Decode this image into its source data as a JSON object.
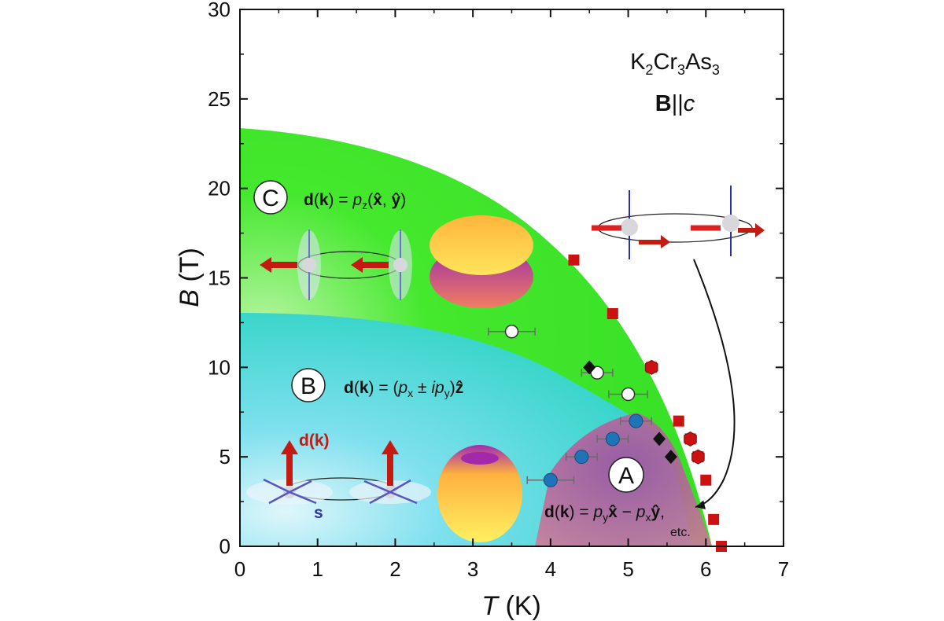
{
  "chart_data": {
    "type": "scatter",
    "title": "",
    "xlabel": {
      "var": "T",
      "unit": " (K)"
    },
    "ylabel": {
      "var": "B",
      "unit": " (T)"
    },
    "xlim": [
      0,
      7
    ],
    "ylim": [
      0,
      30
    ],
    "x_ticks": [
      "0",
      "1",
      "2",
      "3",
      "4",
      "5",
      "6",
      "7"
    ],
    "y_ticks": [
      "0",
      "5",
      "10",
      "15",
      "20",
      "25",
      "30"
    ],
    "grid": false,
    "material": {
      "compound": "K2Cr3As3",
      "field": "B||c"
    },
    "phases": [
      {
        "id": "C",
        "formula": "d(k) = pz(x̂, ŷ)",
        "color": "#3fe82c"
      },
      {
        "id": "B",
        "formula": "d(k) = (px ± ipy)ẑ",
        "color": "#31d6d2"
      },
      {
        "id": "A",
        "formula": "d(k) = pyx̂ − pxŷ,",
        "note": "etc.",
        "color": "#c86a90"
      }
    ],
    "vector_labels": {
      "dk": "d(k)",
      "spin": "s"
    },
    "series": [
      {
        "marker": "square",
        "color": "#cc1111",
        "points": [
          [
            4.3,
            16.0
          ],
          [
            4.8,
            13.0
          ],
          [
            5.3,
            10.0
          ],
          [
            5.65,
            7.0
          ],
          [
            5.8,
            6.0
          ],
          [
            5.9,
            5.0
          ],
          [
            6.0,
            3.7
          ],
          [
            6.1,
            1.5
          ],
          [
            6.2,
            0.0
          ]
        ]
      },
      {
        "marker": "circle-open",
        "color": "#ffffff",
        "points": [
          [
            3.5,
            12.0
          ],
          [
            4.6,
            9.7
          ],
          [
            5.0,
            8.5
          ]
        ],
        "x_err": [
          0.3,
          0.2,
          0.25
        ]
      },
      {
        "marker": "circle-filled",
        "color": "#1f74b8",
        "points": [
          [
            5.1,
            7.0
          ],
          [
            4.8,
            6.0
          ],
          [
            4.4,
            5.0
          ],
          [
            4.0,
            3.7
          ]
        ],
        "x_err": [
          0.2,
          0.2,
          0.2,
          0.3
        ]
      },
      {
        "marker": "diamond",
        "color": "#111111",
        "points": [
          [
            4.5,
            10.0
          ],
          [
            5.4,
            6.0
          ],
          [
            5.55,
            5.0
          ]
        ],
        "x_err": [
          0.0,
          0.0,
          0.0
        ]
      },
      {
        "marker": "hexagon",
        "color": "#cc1111",
        "points": [
          [
            5.3,
            10.0
          ],
          [
            5.8,
            6.0
          ],
          [
            5.9,
            5.0
          ]
        ]
      }
    ]
  }
}
